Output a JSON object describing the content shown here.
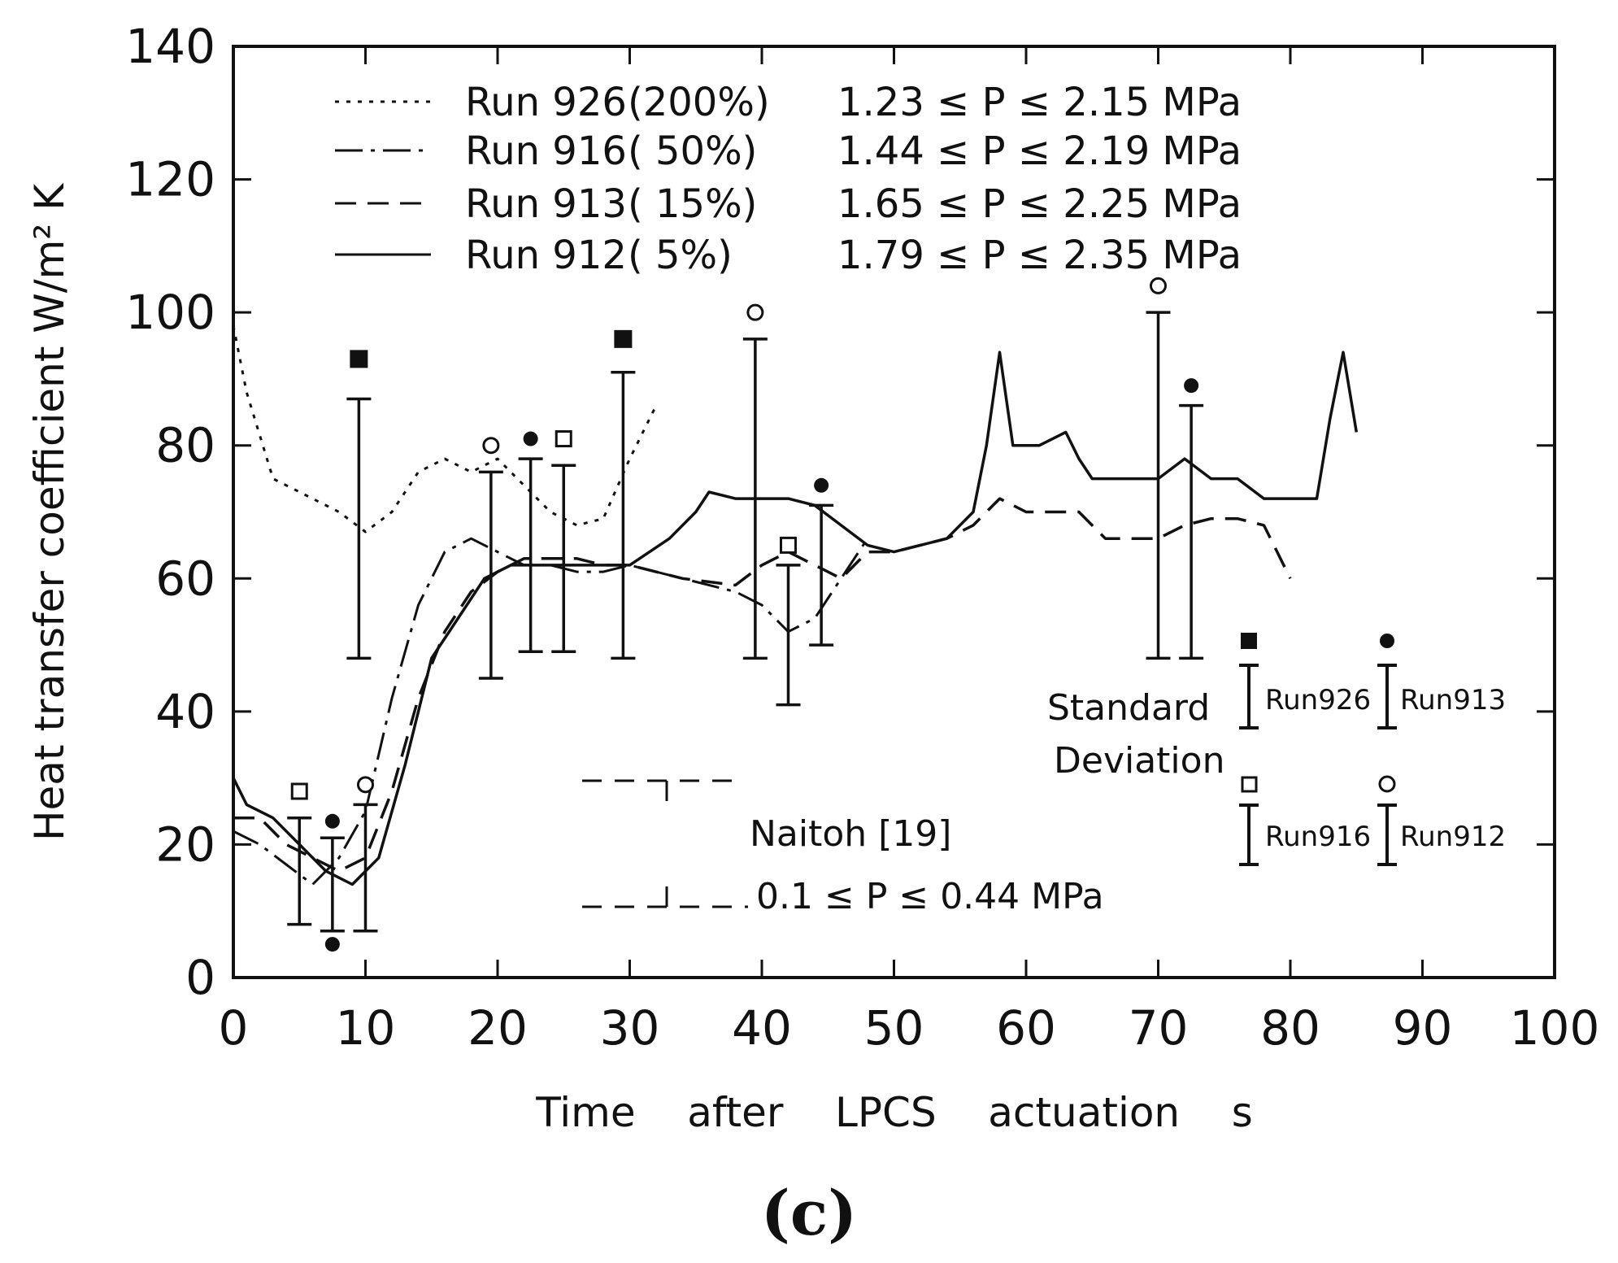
{
  "chart_data": {
    "type": "line",
    "panel_label": "(c)",
    "xlabel": "Time    after    LPCS    actuation    s",
    "ylabel": "Heat   transfer   coefficient    W/m² K",
    "xlim": [
      0,
      100
    ],
    "ylim": [
      0,
      140
    ],
    "xticks": [
      0,
      10,
      20,
      30,
      40,
      50,
      60,
      70,
      80,
      90,
      100
    ],
    "yticks": [
      0,
      20,
      40,
      60,
      80,
      100,
      120,
      140
    ],
    "legend": [
      {
        "run": "Run 926",
        "pct": "(200%)",
        "range": "1.23 ≤ P ≤ 2.15 MPa"
      },
      {
        "run": "Run 916",
        "pct": "( 50%)",
        "range": "1.44 ≤ P ≤ 2.19 MPa"
      },
      {
        "run": "Run 913",
        "pct": "( 15%)",
        "range": "1.65 ≤ P ≤ 2.25 MPa"
      },
      {
        "run": "Run 912",
        "pct": "( 5%)",
        "range": "1.79 ≤ P ≤ 2.35 MPa"
      }
    ],
    "series": [
      {
        "name": "Run 926",
        "style": "dotted",
        "x": [
          0,
          1,
          3,
          6,
          8,
          10,
          12,
          14,
          16,
          18,
          20,
          22,
          24,
          26,
          28,
          30,
          32
        ],
        "y": [
          98,
          88,
          75,
          72,
          70,
          67,
          70,
          76,
          78,
          76,
          78,
          74,
          70,
          68,
          69,
          78,
          86
        ]
      },
      {
        "name": "Run 916",
        "style": "dash-dot",
        "x": [
          0,
          2,
          4,
          6,
          8,
          10,
          12,
          14,
          16,
          18,
          20,
          22,
          24,
          26,
          28,
          30,
          34,
          38,
          40,
          42,
          44,
          46,
          48
        ],
        "y": [
          22,
          20,
          17,
          14,
          18,
          25,
          42,
          56,
          64,
          66,
          64,
          62,
          62,
          61,
          61,
          62,
          60,
          58,
          56,
          52,
          54,
          60,
          66
        ]
      },
      {
        "name": "Run 913",
        "style": "dashed",
        "x": [
          0,
          2,
          4,
          6,
          8,
          10,
          12,
          14,
          16,
          18,
          20,
          22,
          24,
          26,
          28,
          30,
          34,
          38,
          40,
          42,
          44,
          46,
          48,
          50,
          54,
          56,
          58,
          60,
          64,
          66,
          70,
          72,
          74,
          76,
          78,
          80
        ],
        "y": [
          24,
          24,
          20,
          18,
          16,
          18,
          28,
          42,
          52,
          58,
          61,
          63,
          63,
          63,
          62,
          62,
          60,
          59,
          62,
          64,
          62,
          60,
          64,
          64,
          66,
          68,
          72,
          70,
          70,
          66,
          66,
          68,
          69,
          69,
          68,
          60
        ]
      },
      {
        "name": "Run 912",
        "style": "solid",
        "x": [
          0,
          1,
          3,
          5,
          7,
          9,
          11,
          13,
          15,
          17,
          19,
          21,
          23,
          25,
          27,
          30,
          33,
          35,
          36,
          38,
          40,
          42,
          44,
          46,
          48,
          50,
          52,
          54,
          56,
          57,
          58,
          59,
          61,
          63,
          64,
          65,
          67,
          70,
          72,
          74,
          76,
          78,
          80,
          82,
          83,
          84,
          85
        ],
        "y": [
          30,
          26,
          24,
          20,
          16,
          14,
          18,
          32,
          48,
          54,
          60,
          62,
          62,
          62,
          62,
          62,
          66,
          70,
          73,
          72,
          72,
          72,
          71,
          68,
          65,
          64,
          65,
          66,
          70,
          80,
          94,
          80,
          80,
          82,
          78,
          75,
          75,
          75,
          78,
          75,
          75,
          72,
          72,
          72,
          84,
          94,
          82
        ]
      }
    ],
    "error_bars": [
      {
        "x": 5,
        "low": 8,
        "high": 24,
        "marker": "open-square",
        "my": 28
      },
      {
        "x": 7.5,
        "low": 7,
        "high": 21,
        "marker": "filled-circle",
        "my": 23.5
      },
      {
        "x": 10,
        "low": 7,
        "high": 26,
        "marker": "open-circle",
        "my": 29
      },
      {
        "x": 9.5,
        "low": 48,
        "high": 87,
        "marker": "filled-square",
        "my": 93
      },
      {
        "x": 19.5,
        "low": 45,
        "high": 76,
        "marker": "open-circle",
        "my": 80
      },
      {
        "x": 22.5,
        "low": 49,
        "high": 78,
        "marker": "filled-circle",
        "my": 81
      },
      {
        "x": 25,
        "low": 49,
        "high": 77,
        "marker": "open-square",
        "my": 81
      },
      {
        "x": 29.5,
        "low": 48,
        "high": 91,
        "marker": "filled-square",
        "my": 96
      },
      {
        "x": 39.5,
        "low": 48,
        "high": 96,
        "marker": "open-circle",
        "my": 100
      },
      {
        "x": 42,
        "low": 41,
        "high": 62,
        "marker": "open-square",
        "my": 65
      },
      {
        "x": 44.5,
        "low": 50,
        "high": 71,
        "marker": "filled-circle",
        "my": 74
      },
      {
        "x": 70,
        "low": 48,
        "high": 100,
        "marker": "open-circle",
        "my": 104
      },
      {
        "x": 72.5,
        "low": 48,
        "high": 86,
        "marker": "filled-circle",
        "my": 89
      }
    ],
    "extra_points": [
      {
        "x": 7.5,
        "y": 5,
        "marker": "filled-circle"
      }
    ],
    "annotations": {
      "naitoh_label": "Naitoh [19]",
      "naitoh_range": "0.1 ≤ P ≤ 0.44 MPa",
      "sd_line1": "Standard",
      "sd_line2": "Deviation",
      "sd_runs": [
        "Run926",
        "Run913",
        "Run916",
        "Run912"
      ]
    }
  }
}
